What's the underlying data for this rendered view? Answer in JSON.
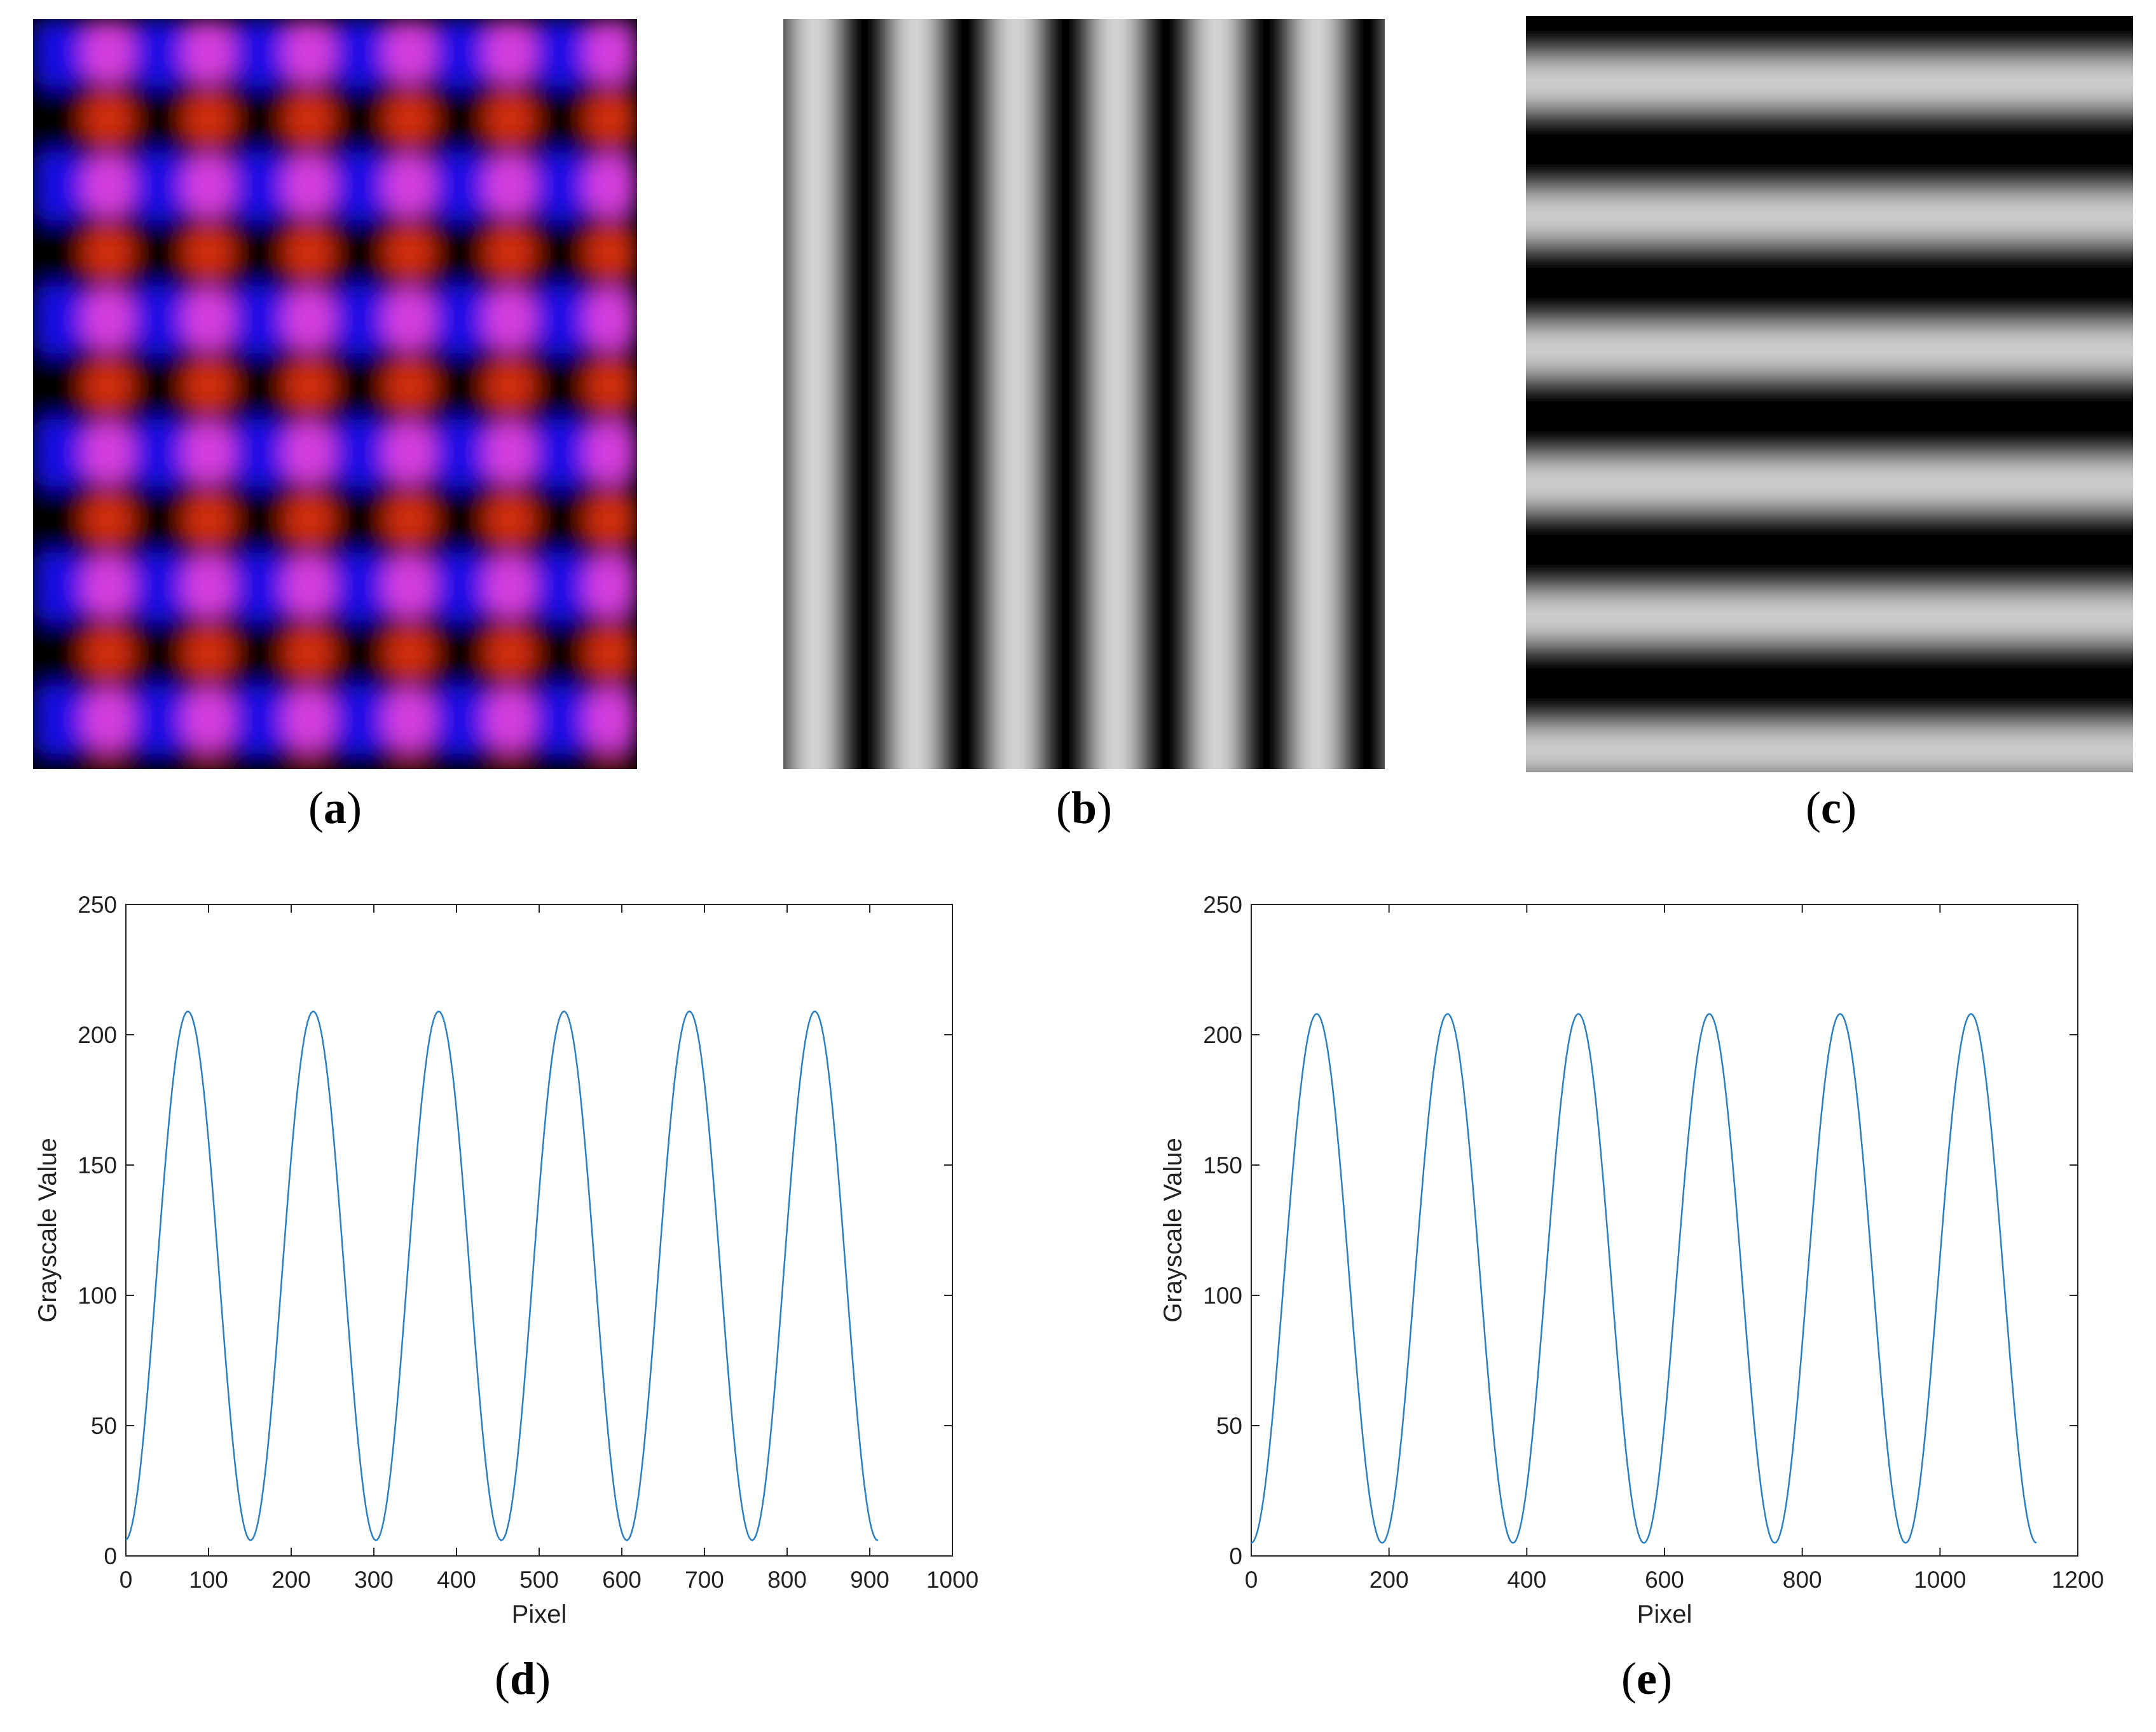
{
  "panels": {
    "a": {
      "label_open": "(",
      "label_letter": "a",
      "label_close": ")",
      "description_colors": {
        "blue": "#1a10f0",
        "magenta": "#e040e8",
        "red": "#dd3010",
        "black": "#000000"
      }
    },
    "b": {
      "label_open": "(",
      "label_letter": "b",
      "label_close": ")"
    },
    "c": {
      "label_open": "(",
      "label_letter": "c",
      "label_close": ")"
    },
    "d": {
      "label_open": "(",
      "label_letter": "d",
      "label_close": ")"
    },
    "e": {
      "label_open": "(",
      "label_letter": "e",
      "label_close": ")"
    }
  },
  "chart_data": [
    {
      "panel": "d",
      "type": "line",
      "xlabel": "Pixel",
      "ylabel": "Grayscale Value",
      "xlim": [
        0,
        1000
      ],
      "ylim": [
        0,
        250
      ],
      "xticks": [
        0,
        100,
        200,
        300,
        400,
        500,
        600,
        700,
        800,
        900,
        1000
      ],
      "yticks": [
        0,
        50,
        100,
        150,
        200,
        250
      ],
      "series": [
        {
          "color": "#2b7fc1",
          "x_range": [
            0,
            910
          ],
          "period": 151.7,
          "peak_first": 75,
          "max": 209,
          "min": 6
        }
      ]
    },
    {
      "panel": "e",
      "type": "line",
      "xlabel": "Pixel",
      "ylabel": "Grayscale Value",
      "xlim": [
        0,
        1200
      ],
      "ylim": [
        0,
        250
      ],
      "xticks": [
        0,
        200,
        400,
        600,
        800,
        1000,
        1200
      ],
      "yticks": [
        0,
        50,
        100,
        150,
        200,
        250
      ],
      "series": [
        {
          "color": "#2b7fc1",
          "x_range": [
            0,
            1140
          ],
          "period": 190,
          "peak_first": 95,
          "max": 208,
          "min": 5
        }
      ]
    }
  ]
}
